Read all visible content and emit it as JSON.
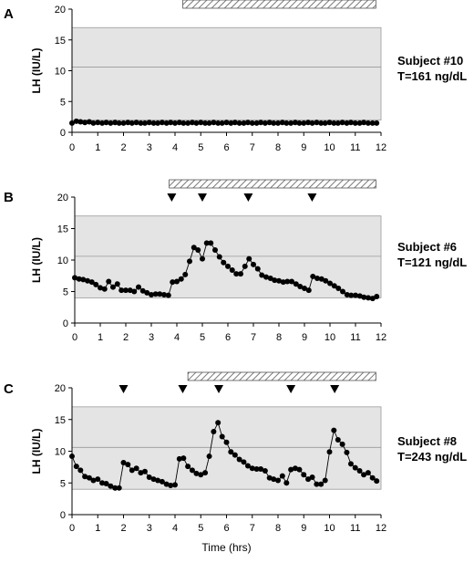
{
  "chart_data": [
    {
      "type": "line",
      "panel_label": "A",
      "ylabel": "LH (IU/L)",
      "xlim": [
        0,
        12
      ],
      "ylim": [
        0,
        20
      ],
      "x_ticks": [
        "0",
        "1",
        "2",
        "3",
        "4",
        "5",
        "6",
        "7",
        "8",
        "9",
        "10",
        "11",
        "12"
      ],
      "y_ticks": [
        "0",
        "5",
        "10",
        "15",
        "20"
      ],
      "normal_range": [
        2,
        17
      ],
      "reference_line": 10.6,
      "hatched_bar": [
        4.3,
        11.8
      ],
      "pulse_markers": [],
      "annotation": [
        "Subject #10",
        "T=161 ng/dL"
      ],
      "series": [
        {
          "x": [
            0,
            0.17,
            0.33,
            0.5,
            0.67,
            0.83,
            1,
            1.17,
            1.33,
            1.5,
            1.67,
            1.83,
            2,
            2.17,
            2.33,
            2.5,
            2.67,
            2.83,
            3,
            3.17,
            3.33,
            3.5,
            3.67,
            3.83,
            4,
            4.17,
            4.33,
            4.5,
            4.67,
            4.83,
            5,
            5.17,
            5.33,
            5.5,
            5.67,
            5.83,
            6,
            6.17,
            6.33,
            6.5,
            6.67,
            6.83,
            7,
            7.17,
            7.33,
            7.5,
            7.67,
            7.83,
            8,
            8.17,
            8.33,
            8.5,
            8.67,
            8.83,
            9,
            9.17,
            9.33,
            9.5,
            9.67,
            9.83,
            10,
            10.17,
            10.33,
            10.5,
            10.67,
            10.83,
            11,
            11.17,
            11.33,
            11.5,
            11.67,
            11.83
          ],
          "y": [
            1.5,
            1.8,
            1.7,
            1.6,
            1.7,
            1.5,
            1.6,
            1.5,
            1.6,
            1.5,
            1.6,
            1.5,
            1.5,
            1.6,
            1.5,
            1.6,
            1.5,
            1.5,
            1.6,
            1.5,
            1.5,
            1.6,
            1.5,
            1.6,
            1.5,
            1.6,
            1.5,
            1.5,
            1.6,
            1.5,
            1.6,
            1.5,
            1.5,
            1.6,
            1.5,
            1.5,
            1.6,
            1.5,
            1.6,
            1.5,
            1.5,
            1.6,
            1.5,
            1.5,
            1.6,
            1.5,
            1.6,
            1.5,
            1.5,
            1.6,
            1.5,
            1.5,
            1.6,
            1.5,
            1.5,
            1.6,
            1.5,
            1.6,
            1.5,
            1.5,
            1.6,
            1.5,
            1.5,
            1.6,
            1.5,
            1.6,
            1.5,
            1.5,
            1.6,
            1.5,
            1.5,
            1.5
          ]
        }
      ]
    },
    {
      "type": "line",
      "panel_label": "B",
      "ylabel": "LH (IU/L)",
      "xlim": [
        0,
        12
      ],
      "ylim": [
        0,
        20
      ],
      "x_ticks": [
        "0",
        "1",
        "2",
        "3",
        "4",
        "5",
        "6",
        "7",
        "8",
        "9",
        "10",
        "11",
        "12"
      ],
      "y_ticks": [
        "0",
        "5",
        "10",
        "15",
        "20"
      ],
      "normal_range": [
        4,
        17
      ],
      "reference_line": 10.6,
      "hatched_bar": [
        3.7,
        11.8
      ],
      "pulse_markers": [
        3.8,
        5.0,
        6.8,
        9.3
      ],
      "annotation": [
        "Subject #6",
        "T=121 ng/dL"
      ],
      "series": [
        {
          "x": [
            0,
            0.17,
            0.33,
            0.5,
            0.67,
            0.83,
            1,
            1.17,
            1.33,
            1.5,
            1.67,
            1.83,
            2,
            2.17,
            2.33,
            2.5,
            2.67,
            2.83,
            3,
            3.17,
            3.33,
            3.5,
            3.67,
            3.83,
            4,
            4.17,
            4.33,
            4.5,
            4.67,
            4.83,
            5,
            5.17,
            5.33,
            5.5,
            5.67,
            5.83,
            6,
            6.17,
            6.33,
            6.5,
            6.67,
            6.83,
            7,
            7.17,
            7.33,
            7.5,
            7.67,
            7.83,
            8,
            8.17,
            8.33,
            8.5,
            8.67,
            8.83,
            9,
            9.17,
            9.33,
            9.5,
            9.67,
            9.83,
            10,
            10.17,
            10.33,
            10.5,
            10.67,
            10.83,
            11,
            11.17,
            11.33,
            11.5,
            11.67,
            11.83
          ],
          "y": [
            7.2,
            7.0,
            6.9,
            6.7,
            6.5,
            6.1,
            5.6,
            5.4,
            6.6,
            5.7,
            6.2,
            5.2,
            5.2,
            5.2,
            5.0,
            5.7,
            5.1,
            4.8,
            4.5,
            4.6,
            4.6,
            4.5,
            4.4,
            6.5,
            6.6,
            7.0,
            7.7,
            9.8,
            12.0,
            11.6,
            10.2,
            12.7,
            12.7,
            11.6,
            10.5,
            9.6,
            9.0,
            8.4,
            7.8,
            7.8,
            9.0,
            10.2,
            9.3,
            8.6,
            7.6,
            7.3,
            7.1,
            6.8,
            6.7,
            6.5,
            6.6,
            6.6,
            6.2,
            5.8,
            5.5,
            5.2,
            7.4,
            7.1,
            7.0,
            6.7,
            6.3,
            5.9,
            5.5,
            5.0,
            4.5,
            4.4,
            4.4,
            4.3,
            4.1,
            4.0,
            3.9,
            4.2
          ]
        }
      ]
    },
    {
      "type": "line",
      "panel_label": "C",
      "ylabel": "LH (IU/L)",
      "xlabel": "Time (hrs)",
      "xlim": [
        0,
        12
      ],
      "ylim": [
        0,
        20
      ],
      "x_ticks": [
        "0",
        "1",
        "2",
        "3",
        "4",
        "5",
        "6",
        "7",
        "8",
        "9",
        "10",
        "11",
        "12"
      ],
      "y_ticks": [
        "0",
        "5",
        "10",
        "15",
        "20"
      ],
      "normal_range": [
        4,
        17
      ],
      "reference_line": 10.6,
      "hatched_bar": [
        4.5,
        11.8
      ],
      "pulse_markers": [
        2.0,
        4.3,
        5.7,
        8.5,
        10.2
      ],
      "annotation": [
        "Subject #8",
        "T=243 ng/dL"
      ],
      "series": [
        {
          "x": [
            0,
            0.17,
            0.33,
            0.5,
            0.67,
            0.83,
            1,
            1.17,
            1.33,
            1.5,
            1.67,
            1.83,
            2,
            2.17,
            2.33,
            2.5,
            2.67,
            2.83,
            3,
            3.17,
            3.33,
            3.5,
            3.67,
            3.83,
            4,
            4.17,
            4.33,
            4.5,
            4.67,
            4.83,
            5,
            5.17,
            5.33,
            5.5,
            5.67,
            5.83,
            6,
            6.17,
            6.33,
            6.5,
            6.67,
            6.83,
            7,
            7.17,
            7.33,
            7.5,
            7.67,
            7.83,
            8,
            8.17,
            8.33,
            8.5,
            8.67,
            8.83,
            9,
            9.17,
            9.33,
            9.5,
            9.67,
            9.83,
            10,
            10.17,
            10.33,
            10.5,
            10.67,
            10.83,
            11,
            11.17,
            11.33,
            11.5,
            11.67,
            11.83
          ],
          "y": [
            9.2,
            7.6,
            7.0,
            6.0,
            5.8,
            5.4,
            5.6,
            5.0,
            4.9,
            4.5,
            4.2,
            4.2,
            8.2,
            7.9,
            7.0,
            7.3,
            6.6,
            6.8,
            5.9,
            5.6,
            5.4,
            5.2,
            4.8,
            4.6,
            4.7,
            8.8,
            8.9,
            7.6,
            7.0,
            6.5,
            6.3,
            6.6,
            9.2,
            13.1,
            14.5,
            12.3,
            11.4,
            9.9,
            9.4,
            8.7,
            8.3,
            7.7,
            7.3,
            7.2,
            7.2,
            6.9,
            5.8,
            5.6,
            5.4,
            6.1,
            5.0,
            7.1,
            7.3,
            7.1,
            6.3,
            5.6,
            5.9,
            4.8,
            4.8,
            5.4,
            9.9,
            13.3,
            11.8,
            11.1,
            9.8,
            8.0,
            7.4,
            6.9,
            6.3,
            6.6,
            5.8,
            5.3
          ]
        }
      ]
    }
  ]
}
